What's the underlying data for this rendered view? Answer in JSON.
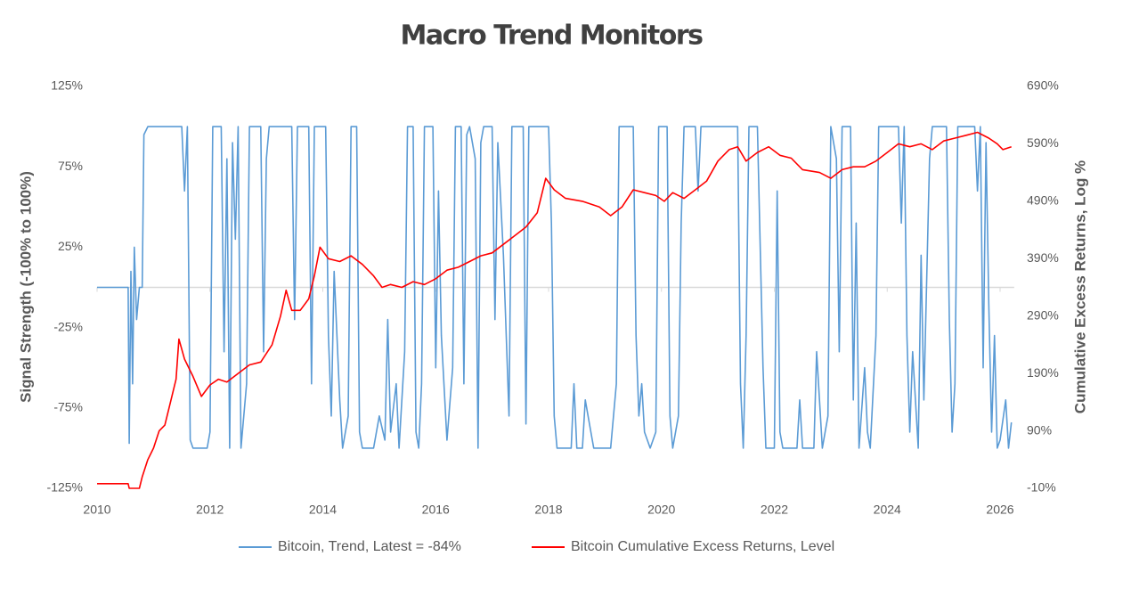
{
  "chart_data": {
    "type": "line",
    "title": "Macro Trend Monitors",
    "y_label": "Signal Strength (-100% to 100%)",
    "y2_label": "Cumulative Excess Returns, Log %",
    "xlim": [
      2010,
      2026.25
    ],
    "xticks": [
      2010,
      2012,
      2014,
      2016,
      2018,
      2020,
      2022,
      2024,
      2026
    ],
    "ylim": [
      -125,
      125
    ],
    "yticks": [
      {
        "value": -125,
        "label": "-125%"
      },
      {
        "value": -75,
        "label": "-75%"
      },
      {
        "value": -25,
        "label": "-25%"
      },
      {
        "value": 25,
        "label": "25%"
      },
      {
        "value": 75,
        "label": "75%"
      },
      {
        "value": 125,
        "label": "125%"
      }
    ],
    "y2lim": [
      -10,
      690
    ],
    "y2ticks": [
      {
        "value": -10,
        "label": "-10%"
      },
      {
        "value": 90,
        "label": "90%"
      },
      {
        "value": 190,
        "label": "190%"
      },
      {
        "value": 290,
        "label": "290%"
      },
      {
        "value": 390,
        "label": "390%"
      },
      {
        "value": 490,
        "label": "490%"
      },
      {
        "value": 590,
        "label": "590%"
      },
      {
        "value": 690,
        "label": "690%"
      }
    ],
    "grid": false,
    "legend": "bottom",
    "series": [
      {
        "name": "Bitcoin, Trend, Latest = -84%",
        "color": "#5b9bd5",
        "axis": "y",
        "x": [
          2010,
          2010.55,
          2010.57,
          2010.6,
          2010.63,
          2010.66,
          2010.7,
          2010.75,
          2010.8,
          2010.83,
          2010.9,
          2011.5,
          2011.55,
          2011.6,
          2011.65,
          2011.7,
          2011.95,
          2012.0,
          2012.05,
          2012.2,
          2012.25,
          2012.3,
          2012.35,
          2012.4,
          2012.45,
          2012.5,
          2012.55,
          2012.65,
          2012.7,
          2012.9,
          2012.95,
          2013.0,
          2013.05,
          2013.45,
          2013.5,
          2013.55,
          2013.75,
          2013.8,
          2013.85,
          2014.05,
          2014.1,
          2014.15,
          2014.2,
          2014.3,
          2014.35,
          2014.45,
          2014.5,
          2014.6,
          2014.65,
          2014.7,
          2014.9,
          2015.0,
          2015.1,
          2015.15,
          2015.2,
          2015.3,
          2015.35,
          2015.45,
          2015.5,
          2015.6,
          2015.65,
          2015.7,
          2015.75,
          2015.8,
          2015.95,
          2016.0,
          2016.05,
          2016.1,
          2016.2,
          2016.3,
          2016.35,
          2016.45,
          2016.5,
          2016.55,
          2016.6,
          2016.7,
          2016.75,
          2016.8,
          2016.85,
          2017.0,
          2017.05,
          2017.1,
          2017.2,
          2017.3,
          2017.35,
          2017.55,
          2017.6,
          2017.65,
          2018.0,
          2018.05,
          2018.1,
          2018.15,
          2018.4,
          2018.45,
          2018.5,
          2018.6,
          2018.65,
          2018.75,
          2018.8,
          2019.1,
          2019.2,
          2019.25,
          2019.5,
          2019.55,
          2019.6,
          2019.65,
          2019.7,
          2019.8,
          2019.9,
          2019.95,
          2020.1,
          2020.15,
          2020.2,
          2020.3,
          2020.35,
          2020.4,
          2020.6,
          2020.65,
          2020.7,
          2021.35,
          2021.4,
          2021.45,
          2021.5,
          2021.55,
          2021.7,
          2021.8,
          2021.85,
          2022.0,
          2022.05,
          2022.1,
          2022.15,
          2022.4,
          2022.45,
          2022.5,
          2022.7,
          2022.75,
          2022.85,
          2022.95,
          2023.0,
          2023.1,
          2023.15,
          2023.2,
          2023.35,
          2023.4,
          2023.45,
          2023.5,
          2023.6,
          2023.65,
          2023.7,
          2023.8,
          2023.85,
          2024.2,
          2024.25,
          2024.3,
          2024.35,
          2024.4,
          2024.45,
          2024.55,
          2024.6,
          2024.65,
          2024.75,
          2024.8,
          2025.05,
          2025.1,
          2025.15,
          2025.2,
          2025.25,
          2025.55,
          2025.6,
          2025.65,
          2025.7,
          2025.75,
          2025.8,
          2025.85,
          2025.9,
          2025.95,
          2026.0,
          2026.1,
          2026.15,
          2026.2
        ],
        "values": [
          0,
          0,
          -97,
          10,
          -60,
          25,
          -20,
          0,
          0,
          95,
          100,
          100,
          60,
          100,
          -95,
          -100,
          -100,
          -90,
          100,
          100,
          -40,
          80,
          -100,
          90,
          30,
          100,
          -100,
          -60,
          100,
          100,
          -40,
          80,
          100,
          100,
          -20,
          100,
          100,
          -60,
          100,
          100,
          -30,
          -80,
          10,
          -70,
          -100,
          -80,
          100,
          100,
          -90,
          -100,
          -100,
          -80,
          -95,
          -20,
          -90,
          -60,
          -100,
          -40,
          100,
          100,
          -90,
          -100,
          -60,
          100,
          100,
          -50,
          60,
          -30,
          -95,
          -50,
          100,
          100,
          -60,
          95,
          100,
          80,
          -100,
          90,
          100,
          100,
          -20,
          90,
          20,
          -80,
          100,
          100,
          -85,
          100,
          100,
          40,
          -80,
          -100,
          -100,
          -60,
          -100,
          -100,
          -70,
          -90,
          -100,
          -100,
          -60,
          100,
          100,
          -30,
          -80,
          -60,
          -90,
          -100,
          -90,
          100,
          100,
          -80,
          -100,
          -80,
          40,
          100,
          100,
          60,
          100,
          100,
          -60,
          -100,
          -30,
          100,
          100,
          -50,
          -100,
          -100,
          60,
          -90,
          -100,
          -100,
          -70,
          -100,
          -100,
          -40,
          -100,
          -80,
          100,
          80,
          -40,
          100,
          100,
          -70,
          40,
          -100,
          -50,
          -90,
          -100,
          -30,
          100,
          100,
          40,
          100,
          -30,
          -90,
          -40,
          -100,
          20,
          -70,
          80,
          100,
          100,
          -20,
          -90,
          -60,
          100,
          100,
          60,
          100,
          -50,
          90,
          -10,
          -90,
          -30,
          -100,
          -95,
          -70,
          -100,
          -84
        ]
      },
      {
        "name": "Bitcoin Cumulative Excess Returns, Level",
        "color": "#ff0000",
        "axis": "y2",
        "x": [
          2010,
          2010.55,
          2010.57,
          2010.75,
          2010.8,
          2010.9,
          2011.0,
          2011.1,
          2011.2,
          2011.3,
          2011.4,
          2011.45,
          2011.55,
          2011.7,
          2011.85,
          2012.0,
          2012.15,
          2012.3,
          2012.5,
          2012.7,
          2012.9,
          2013.1,
          2013.25,
          2013.35,
          2013.45,
          2013.6,
          2013.75,
          2013.85,
          2013.95,
          2014.1,
          2014.3,
          2014.5,
          2014.7,
          2014.9,
          2015.05,
          2015.2,
          2015.4,
          2015.6,
          2015.8,
          2016.0,
          2016.2,
          2016.4,
          2016.6,
          2016.8,
          2017.0,
          2017.2,
          2017.4,
          2017.6,
          2017.8,
          2017.95,
          2018.1,
          2018.3,
          2018.6,
          2018.9,
          2019.1,
          2019.3,
          2019.5,
          2019.7,
          2019.9,
          2020.05,
          2020.2,
          2020.4,
          2020.6,
          2020.8,
          2021.0,
          2021.2,
          2021.35,
          2021.5,
          2021.7,
          2021.9,
          2022.1,
          2022.3,
          2022.5,
          2022.8,
          2023.0,
          2023.2,
          2023.4,
          2023.6,
          2023.8,
          2024.0,
          2024.2,
          2024.4,
          2024.6,
          2024.8,
          2025.0,
          2025.2,
          2025.4,
          2025.6,
          2025.8,
          2025.95,
          2026.05,
          2026.2
        ],
        "values": [
          -2,
          -2,
          -10,
          -10,
          10,
          40,
          60,
          90,
          100,
          140,
          180,
          250,
          215,
          185,
          150,
          170,
          180,
          175,
          190,
          205,
          210,
          240,
          290,
          335,
          300,
          300,
          320,
          360,
          410,
          390,
          385,
          395,
          380,
          360,
          340,
          345,
          340,
          350,
          345,
          355,
          370,
          375,
          385,
          395,
          400,
          415,
          430,
          445,
          470,
          530,
          510,
          495,
          490,
          480,
          465,
          480,
          510,
          505,
          500,
          490,
          505,
          495,
          510,
          525,
          560,
          580,
          585,
          560,
          575,
          585,
          570,
          565,
          545,
          540,
          530,
          545,
          550,
          550,
          560,
          575,
          590,
          585,
          590,
          580,
          595,
          600,
          605,
          610,
          600,
          590,
          580,
          585
        ]
      }
    ]
  }
}
